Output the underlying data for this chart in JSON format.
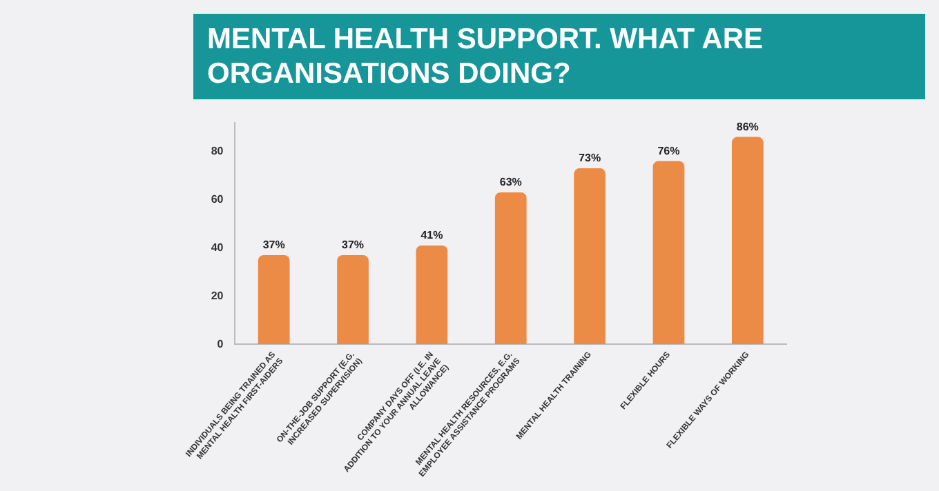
{
  "chart_data": {
    "type": "bar",
    "title": "MENTAL HEALTH SUPPORT. WHAT ARE ORGANISATIONS DOING?",
    "categories": [
      "INDIVIDUALS BEING TRAINED AS MENTAL HEALTH FIRST-AIDERS",
      "ON-THE-JOB SUPPORT (E.G. INCREASED SUPERVISION)",
      "COMPANY DAYS OFF (I.E. IN ADDITION TO YOUR ANNUAL LEAVE ALLOWANCE)",
      "MENTAL HEALTH RESOURCES, E.G. EMPLOYEE ASSISTANCE PROGRAMS",
      "MENTAL HEALTH TRAINING",
      "FLEXIBLE HOURS",
      "FLEXIBLE WAYS OF WORKING"
    ],
    "values": [
      37,
      37,
      41,
      63,
      73,
      76,
      86
    ],
    "value_labels": [
      "37%",
      "37%",
      "41%",
      "63%",
      "73%",
      "76%",
      "86%"
    ],
    "color": "#ec8b45",
    "ylim": [
      0,
      92
    ],
    "yticks": [
      0,
      20,
      40,
      60,
      80
    ],
    "grid": false,
    "legend": false
  }
}
